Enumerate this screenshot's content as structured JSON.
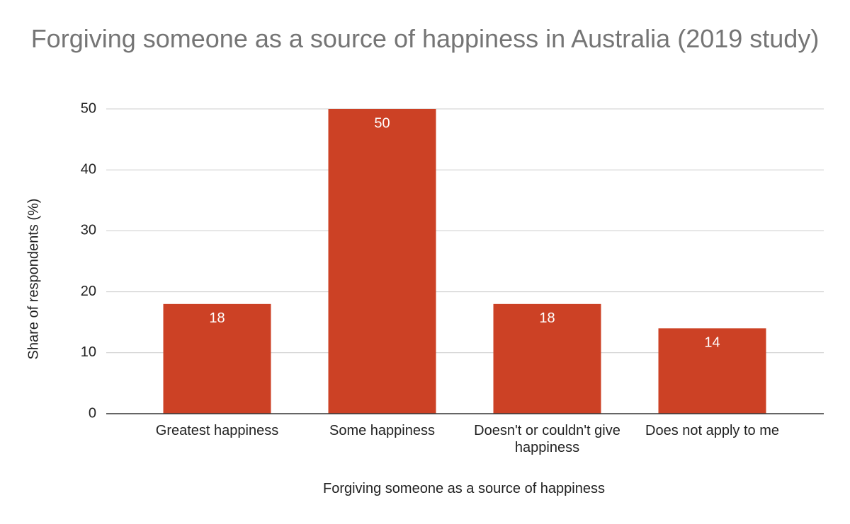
{
  "chart_data": {
    "type": "bar",
    "title": "Forgiving someone as a source of happiness in Australia (2019 study)",
    "x_label": "Forgiving someone as a source of happiness",
    "y_label": "Share of respondents (%)",
    "categories": [
      "Greatest happiness",
      "Some happiness",
      "Doesn't or couldn't give happiness",
      "Does not apply to me"
    ],
    "values": [
      18,
      50,
      18,
      14
    ],
    "color": "#cc4125",
    "ylim": [
      0,
      50
    ],
    "yticks": [
      0,
      10,
      20,
      30,
      40,
      50
    ],
    "grid": true
  }
}
